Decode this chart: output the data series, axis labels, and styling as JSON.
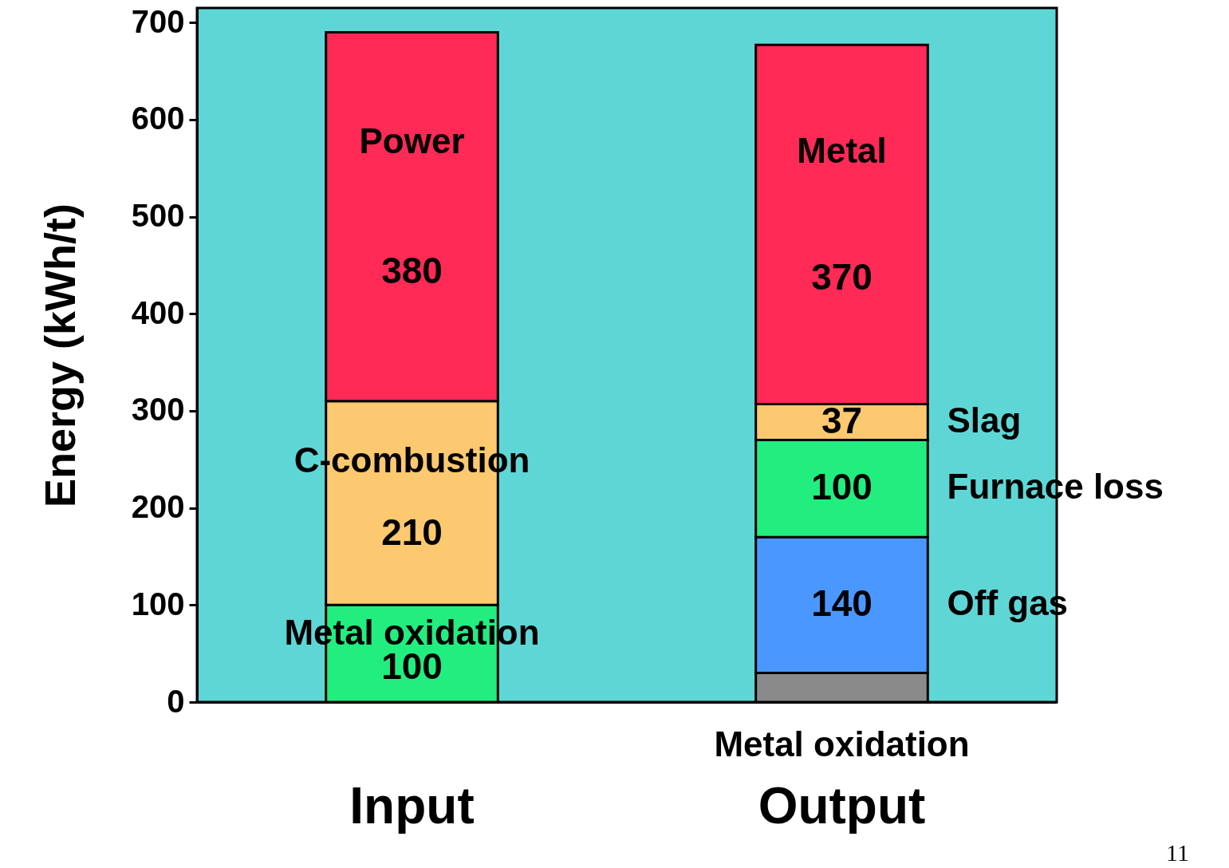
{
  "chart_data": {
    "type": "bar",
    "stacked": true,
    "ylabel": "Energy   (kWh/t)",
    "categories": [
      "Input",
      "Output"
    ],
    "series": [
      {
        "name": "Metal oxidation",
        "color": "#22ee80",
        "values": [
          100,
          null
        ],
        "value_labels": [
          "100",
          null
        ]
      },
      {
        "name": "C-combustion",
        "color": "#fcc870",
        "values": [
          210,
          null
        ],
        "value_labels": [
          "210",
          null
        ]
      },
      {
        "name": "Power",
        "color": "#ff2a55",
        "values": [
          380,
          null
        ],
        "value_labels": [
          "380",
          null
        ]
      },
      {
        "name": "Metal oxidation",
        "color": "#8a8a8a",
        "values": [
          null,
          30
        ],
        "value_labels": [
          null,
          null
        ]
      },
      {
        "name": "Off gas",
        "color": "#4a98ff",
        "values": [
          null,
          140
        ],
        "value_labels": [
          null,
          "140"
        ]
      },
      {
        "name": "Furnace loss",
        "color": "#22ee80",
        "values": [
          null,
          100
        ],
        "value_labels": [
          null,
          "100"
        ]
      },
      {
        "name": "Slag",
        "color": "#fcc870",
        "values": [
          null,
          37
        ],
        "value_labels": [
          null,
          "37"
        ]
      },
      {
        "name": "Metal",
        "color": "#ff2a55",
        "values": [
          null,
          370
        ],
        "value_labels": [
          null,
          "370"
        ]
      }
    ],
    "ylim": [
      0,
      715
    ],
    "yticks": [
      0,
      100,
      200,
      300,
      400,
      500,
      600,
      700
    ],
    "grid": false,
    "legend": false,
    "annotations": [
      "11"
    ]
  }
}
